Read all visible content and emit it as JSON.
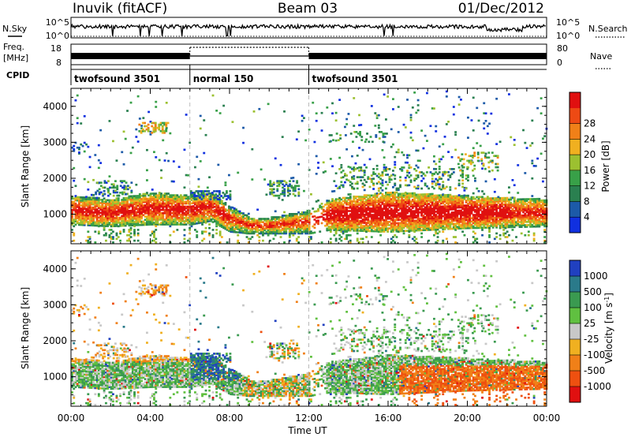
{
  "header": {
    "station": "Inuvik (fitACF)",
    "beam": "Beam 03",
    "date": "01/Dec/2012"
  },
  "top_panels": {
    "nsky_label": "N.Sky",
    "nsky_ticks": [
      "10^5",
      "10^0"
    ],
    "nsearch_label": "N.Search",
    "nsearch_ticks": [
      "10^5",
      "10^0"
    ],
    "freq_label": "Freq.",
    "freq_unit": "[MHz]",
    "freq_ticks": [
      "18",
      "8"
    ],
    "nave_label": "Nave",
    "nave_ticks": [
      "80",
      "0"
    ],
    "cpid_label": "CPID",
    "cpid_segments": [
      {
        "label": "twofsound 3501",
        "start": 0,
        "end": 6
      },
      {
        "label": "normal 150",
        "start": 6,
        "end": 12
      },
      {
        "label": "twofsound 3501",
        "start": 12,
        "end": 24
      }
    ]
  },
  "chart_data": [
    {
      "type": "heatmap",
      "quantity": "power",
      "ylabel": "Slant Range [km]",
      "ylim": [
        180,
        4500
      ],
      "yticks": [
        "1000",
        "2000",
        "3000",
        "4000"
      ],
      "colorbar_label": "Power [dB]",
      "colorbar_ticks": [
        "4",
        "8",
        "12",
        "16",
        "20",
        "24",
        "28"
      ],
      "colorbar_colors": [
        "#1030e0",
        "#1c5aa8",
        "#2a8050",
        "#38a048",
        "#9cc030",
        "#f0b020",
        "#f08018",
        "#ee4a14",
        "#e01010"
      ],
      "colorbar_range": [
        0,
        32
      ],
      "main_echo_band": [
        {
          "t": 0,
          "lo": 700,
          "hi": 1500
        },
        {
          "t": 2,
          "lo": 650,
          "hi": 1400
        },
        {
          "t": 4,
          "lo": 700,
          "hi": 1600
        },
        {
          "t": 6,
          "lo": 700,
          "hi": 1500
        },
        {
          "t": 7,
          "lo": 800,
          "hi": 1600
        },
        {
          "t": 8,
          "lo": 500,
          "hi": 1200
        },
        {
          "t": 9,
          "lo": 450,
          "hi": 900
        },
        {
          "t": 10,
          "lo": 450,
          "hi": 900
        },
        {
          "t": 11,
          "lo": 450,
          "hi": 1000
        },
        {
          "t": 12,
          "lo": 450,
          "hi": 1100
        },
        {
          "t": 13,
          "lo": 550,
          "hi": 1400
        },
        {
          "t": 16,
          "lo": 500,
          "hi": 1600
        },
        {
          "t": 20,
          "lo": 600,
          "hi": 1500
        },
        {
          "t": 24,
          "lo": 650,
          "hi": 1400
        }
      ]
    },
    {
      "type": "heatmap",
      "quantity": "velocity",
      "xlabel": "Time UT",
      "ylabel": "Slant Range [km]",
      "ylim": [
        180,
        4500
      ],
      "yticks": [
        "1000",
        "2000",
        "3000",
        "4000"
      ],
      "xlim": [
        0,
        24
      ],
      "xticks": [
        "00:00",
        "04:00",
        "08:00",
        "12:00",
        "16:00",
        "20:00",
        "00:00"
      ],
      "colorbar_label": "Velocity [m s-1]",
      "colorbar_ticks": [
        "1000",
        "500",
        "100",
        "25",
        "-25",
        "-100",
        "-500",
        "-1000"
      ],
      "colorbar_colors": [
        "#2040c0",
        "#2a7a8a",
        "#3a9a50",
        "#60c040",
        "#c8c8c8",
        "#f0b020",
        "#f08018",
        "#ee5010",
        "#e01010"
      ]
    }
  ]
}
